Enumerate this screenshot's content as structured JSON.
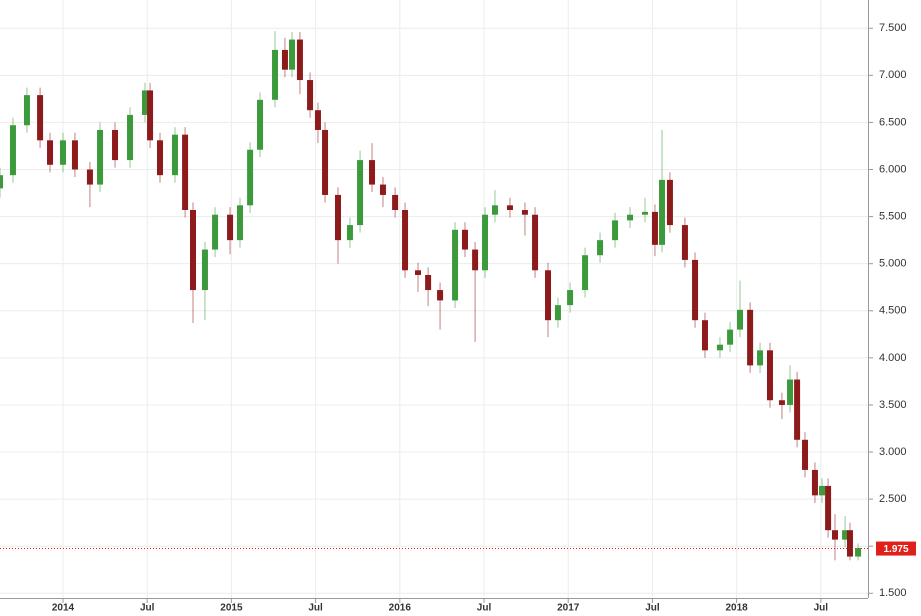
{
  "chart_data": {
    "type": "candlestick",
    "x": [
      2013.626,
      2013.703,
      2013.786,
      2013.864,
      2013.923,
      2014.0,
      2014.071,
      2014.16,
      2014.22,
      2014.309,
      2014.398,
      2014.487,
      2014.517,
      2014.576,
      2014.665,
      2014.725,
      2014.772,
      2014.843,
      2014.903,
      2014.992,
      2015.051,
      2015.111,
      2015.17,
      2015.259,
      2015.318,
      2015.36,
      2015.407,
      2015.467,
      2015.514,
      2015.556,
      2015.633,
      2015.704,
      2015.764,
      2015.835,
      2015.9,
      2015.972,
      2016.031,
      2016.108,
      2016.168,
      2016.239,
      2016.328,
      2016.387,
      2016.447,
      2016.506,
      2016.565,
      2016.654,
      2016.743,
      2016.803,
      2016.88,
      2016.939,
      2017.011,
      2017.1,
      2017.189,
      2017.278,
      2017.367,
      2017.456,
      2017.515,
      2017.557,
      2017.604,
      2017.693,
      2017.753,
      2017.812,
      2017.901,
      2017.961,
      2018.02,
      2018.08,
      2018.139,
      2018.198,
      2018.269,
      2018.317,
      2018.359,
      2018.406,
      2018.465,
      2018.507,
      2018.543,
      2018.584,
      2018.644,
      2018.673,
      2018.721
    ],
    "open": [
      5.8,
      5.94,
      6.47,
      6.79,
      6.31,
      6.05,
      6.31,
      6.0,
      5.84,
      6.42,
      6.1,
      6.58,
      6.84,
      6.31,
      5.94,
      6.37,
      5.57,
      4.72,
      5.15,
      5.52,
      5.25,
      5.62,
      6.21,
      6.74,
      7.27,
      7.06,
      7.38,
      6.95,
      6.63,
      6.42,
      5.73,
      5.25,
      5.41,
      6.1,
      5.84,
      5.73,
      5.57,
      4.93,
      4.88,
      4.72,
      4.61,
      5.36,
      5.15,
      4.93,
      5.52,
      5.62,
      5.57,
      5.52,
      4.93,
      4.4,
      4.56,
      4.72,
      5.09,
      5.25,
      5.46,
      5.52,
      5.55,
      5.2,
      5.89,
      5.41,
      5.04,
      4.4,
      4.08,
      4.14,
      4.3,
      4.51,
      3.92,
      4.08,
      3.55,
      3.5,
      3.77,
      3.13,
      2.81,
      2.54,
      2.64,
      2.17,
      2.07,
      2.17,
      1.89
    ],
    "high": [
      6.02,
      6.55,
      6.87,
      6.87,
      6.39,
      6.39,
      6.39,
      6.08,
      6.5,
      6.5,
      6.66,
      6.92,
      6.92,
      6.39,
      6.45,
      6.45,
      5.65,
      5.23,
      5.6,
      5.6,
      5.7,
      6.29,
      6.82,
      7.47,
      7.4,
      7.46,
      7.46,
      7.03,
      6.71,
      6.5,
      5.81,
      5.49,
      6.2,
      6.28,
      5.92,
      5.81,
      5.65,
      5.01,
      4.96,
      4.8,
      5.44,
      5.44,
      5.23,
      5.6,
      5.78,
      5.7,
      5.65,
      5.6,
      5.01,
      4.64,
      4.8,
      5.17,
      5.33,
      5.54,
      5.6,
      5.7,
      5.63,
      6.42,
      5.97,
      5.49,
      5.12,
      4.48,
      4.22,
      4.38,
      4.82,
      4.59,
      4.16,
      4.16,
      3.63,
      3.92,
      3.85,
      3.21,
      2.89,
      2.72,
      2.72,
      2.34,
      2.32,
      2.25,
      2.03
    ],
    "low": [
      5.7,
      5.86,
      6.39,
      6.23,
      5.97,
      5.97,
      5.92,
      5.6,
      5.76,
      6.02,
      6.02,
      6.5,
      6.23,
      5.86,
      5.86,
      5.49,
      4.37,
      4.4,
      5.07,
      5.1,
      5.17,
      5.54,
      6.13,
      6.66,
      6.98,
      6.98,
      6.8,
      6.55,
      6.28,
      5.65,
      5.0,
      5.17,
      5.33,
      5.76,
      5.6,
      5.49,
      4.85,
      4.7,
      4.55,
      4.3,
      4.53,
      5.07,
      4.17,
      4.85,
      5.44,
      5.49,
      5.3,
      4.85,
      4.22,
      4.32,
      4.48,
      4.64,
      5.01,
      5.17,
      5.38,
      5.44,
      5.08,
      5.12,
      5.33,
      4.96,
      4.32,
      4.0,
      4.0,
      4.06,
      4.22,
      3.84,
      3.84,
      3.47,
      3.35,
      3.42,
      3.05,
      2.73,
      2.46,
      2.46,
      2.09,
      1.85,
      1.99,
      1.85,
      1.85
    ],
    "close": [
      5.94,
      6.47,
      6.79,
      6.31,
      6.05,
      6.31,
      6.0,
      5.84,
      6.42,
      6.1,
      6.58,
      6.84,
      6.31,
      5.94,
      6.37,
      5.57,
      4.72,
      5.15,
      5.52,
      5.25,
      5.62,
      6.21,
      6.74,
      7.27,
      7.06,
      7.38,
      6.95,
      6.63,
      6.42,
      5.73,
      5.25,
      5.41,
      6.1,
      5.84,
      5.73,
      5.57,
      4.93,
      4.88,
      4.72,
      4.61,
      5.36,
      5.15,
      4.93,
      5.52,
      5.62,
      5.57,
      5.52,
      4.93,
      4.4,
      4.56,
      4.72,
      5.09,
      5.25,
      5.46,
      5.52,
      5.55,
      5.2,
      5.89,
      5.41,
      5.04,
      4.4,
      4.08,
      4.14,
      4.3,
      4.51,
      3.92,
      4.08,
      3.55,
      3.5,
      3.77,
      3.13,
      2.81,
      2.54,
      2.64,
      2.17,
      2.07,
      2.17,
      1.89,
      1.98
    ],
    "up_color": "#3c9a3c",
    "down_color": "#8e1b1b",
    "last_value": {
      "value": 1.975,
      "label": "1.975"
    },
    "last_color": "#e0201b",
    "xlim": [
      2013.626,
      2018.78
    ],
    "ylim": [
      1.45,
      7.8
    ],
    "xticks": [
      {
        "value": 2014,
        "label": "2014"
      },
      {
        "value": 2014.5,
        "label": "Jul"
      },
      {
        "value": 2015,
        "label": "2015"
      },
      {
        "value": 2015.5,
        "label": "Jul"
      },
      {
        "value": 2016,
        "label": "2016"
      },
      {
        "value": 2016.5,
        "label": "Jul"
      },
      {
        "value": 2017,
        "label": "2017"
      },
      {
        "value": 2017.5,
        "label": "Jul"
      },
      {
        "value": 2018,
        "label": "2018"
      },
      {
        "value": 2018.5,
        "label": "Jul"
      }
    ],
    "yticks": [
      {
        "value": 1.5,
        "label": "1.500"
      },
      {
        "value": 2,
        "label": "2.000"
      },
      {
        "value": 2.5,
        "label": "2.500"
      },
      {
        "value": 3,
        "label": "3.000"
      },
      {
        "value": 3.5,
        "label": "3.500"
      },
      {
        "value": 4,
        "label": "4.000"
      },
      {
        "value": 4.5,
        "label": "4.500"
      },
      {
        "value": 5,
        "label": "5.000"
      },
      {
        "value": 5.5,
        "label": "5.500"
      },
      {
        "value": 6,
        "label": "6.000"
      },
      {
        "value": 6.5,
        "label": "6.500"
      },
      {
        "value": 7,
        "label": "7.000"
      },
      {
        "value": 7.5,
        "label": "7.500"
      }
    ],
    "grid": true
  }
}
